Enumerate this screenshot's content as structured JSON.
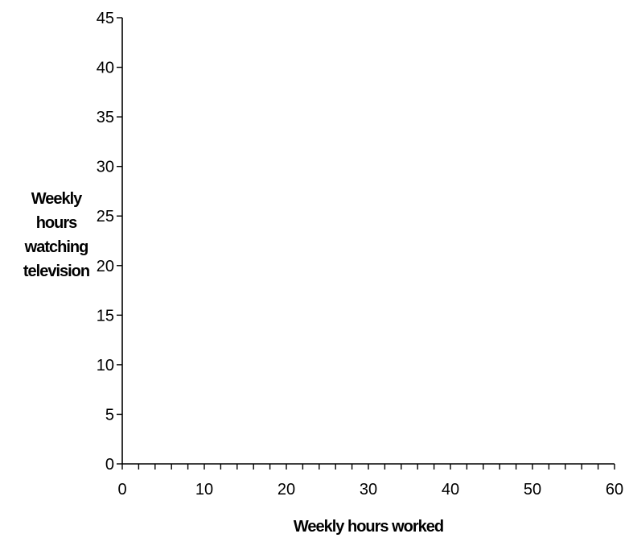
{
  "chart_data": {
    "type": "scatter",
    "title": "",
    "xlabel": "Weekly hours worked",
    "ylabel_lines": [
      "Weekly",
      "hours",
      "watching",
      "television"
    ],
    "xlim": [
      0,
      60
    ],
    "ylim": [
      0,
      45
    ],
    "x_ticks": [
      "0",
      "10",
      "20",
      "30",
      "40",
      "50",
      "60"
    ],
    "y_ticks": [
      "0",
      "5",
      "10",
      "15",
      "20",
      "25",
      "30",
      "35",
      "40",
      "45"
    ],
    "x_minor_step": 2,
    "grid": false,
    "legend": "none",
    "series": [],
    "axis_color": "#000000",
    "background": "#ffffff"
  }
}
